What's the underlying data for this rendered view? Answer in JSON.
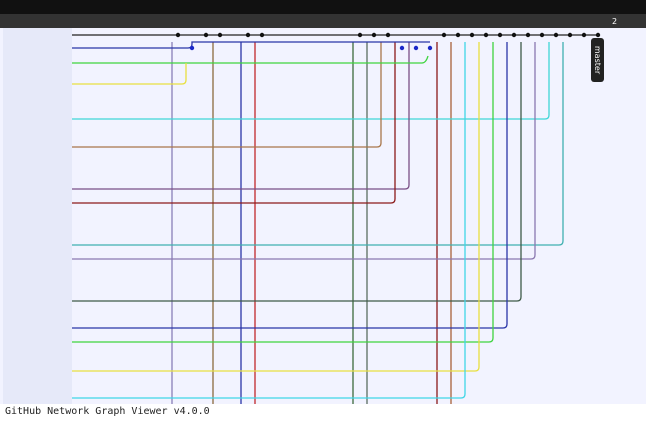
{
  "header": {
    "date_label": "2"
  },
  "graph": {
    "branch_label": "master"
  },
  "footer": {
    "text": "GitHub Network Graph Viewer v4.0.0"
  }
}
